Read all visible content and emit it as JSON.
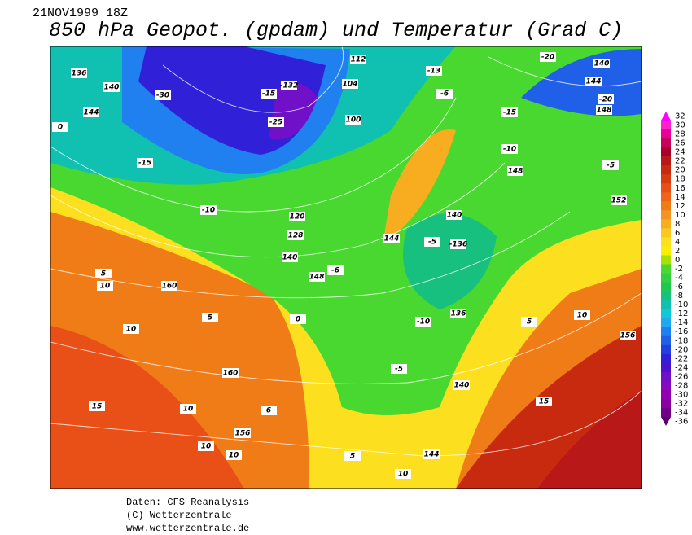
{
  "header": {
    "date": "21NOV1999 18Z",
    "title": "850 hPa Geopot. (gpdam) und  Temperatur (Grad C)"
  },
  "colorbar": {
    "levels": [
      32,
      30,
      28,
      26,
      24,
      22,
      20,
      18,
      16,
      14,
      12,
      10,
      8,
      6,
      4,
      2,
      0,
      -2,
      -4,
      -6,
      -8,
      -10,
      -12,
      -14,
      -16,
      -18,
      -20,
      -22,
      -24,
      -26,
      -28,
      -30,
      -32,
      -34,
      -36
    ],
    "colors": [
      "#ff00ff",
      "#ff22cc",
      "#e8009a",
      "#c8005a",
      "#a80028",
      "#b81818",
      "#c82a10",
      "#d83c10",
      "#e85018",
      "#f06418",
      "#f07c18",
      "#f49420",
      "#f8ac20",
      "#fcc820",
      "#fce020",
      "#f8f000",
      "#a8e000",
      "#48d830",
      "#30d040",
      "#20c850",
      "#18c080",
      "#10c0b0",
      "#10c8d8",
      "#20a8f0",
      "#2080f0",
      "#2060e8",
      "#2040e0",
      "#3020d8",
      "#5010d0",
      "#7010c8",
      "#8808c0",
      "#9000b0",
      "#8800a0",
      "#700088",
      "#580070"
    ]
  },
  "map_labels": [
    "136",
    "140",
    "144",
    "0",
    "-30",
    "-25",
    "-15",
    "-132",
    "100",
    "104",
    "112",
    "-13",
    "-6",
    "-15",
    "-10",
    "148",
    "-5",
    "152",
    "144",
    "-20",
    "148",
    "140",
    "-20",
    "-15",
    "-10",
    "120",
    "128",
    "140",
    "144",
    "-5",
    "-136",
    "140",
    "148",
    "-6",
    "160",
    "5",
    "10",
    "5",
    "10",
    "160",
    "15",
    "10",
    "156",
    "10",
    "10",
    "6",
    "144",
    "10",
    "140",
    "15",
    "10",
    "156",
    "136",
    "-10",
    "-5",
    "5",
    "5",
    "0"
  ],
  "footer": {
    "line1": "Daten: CFS Reanalysis",
    "line2": "(C) Wetterzentrale",
    "line3": "www.wetterzentrale.de"
  }
}
